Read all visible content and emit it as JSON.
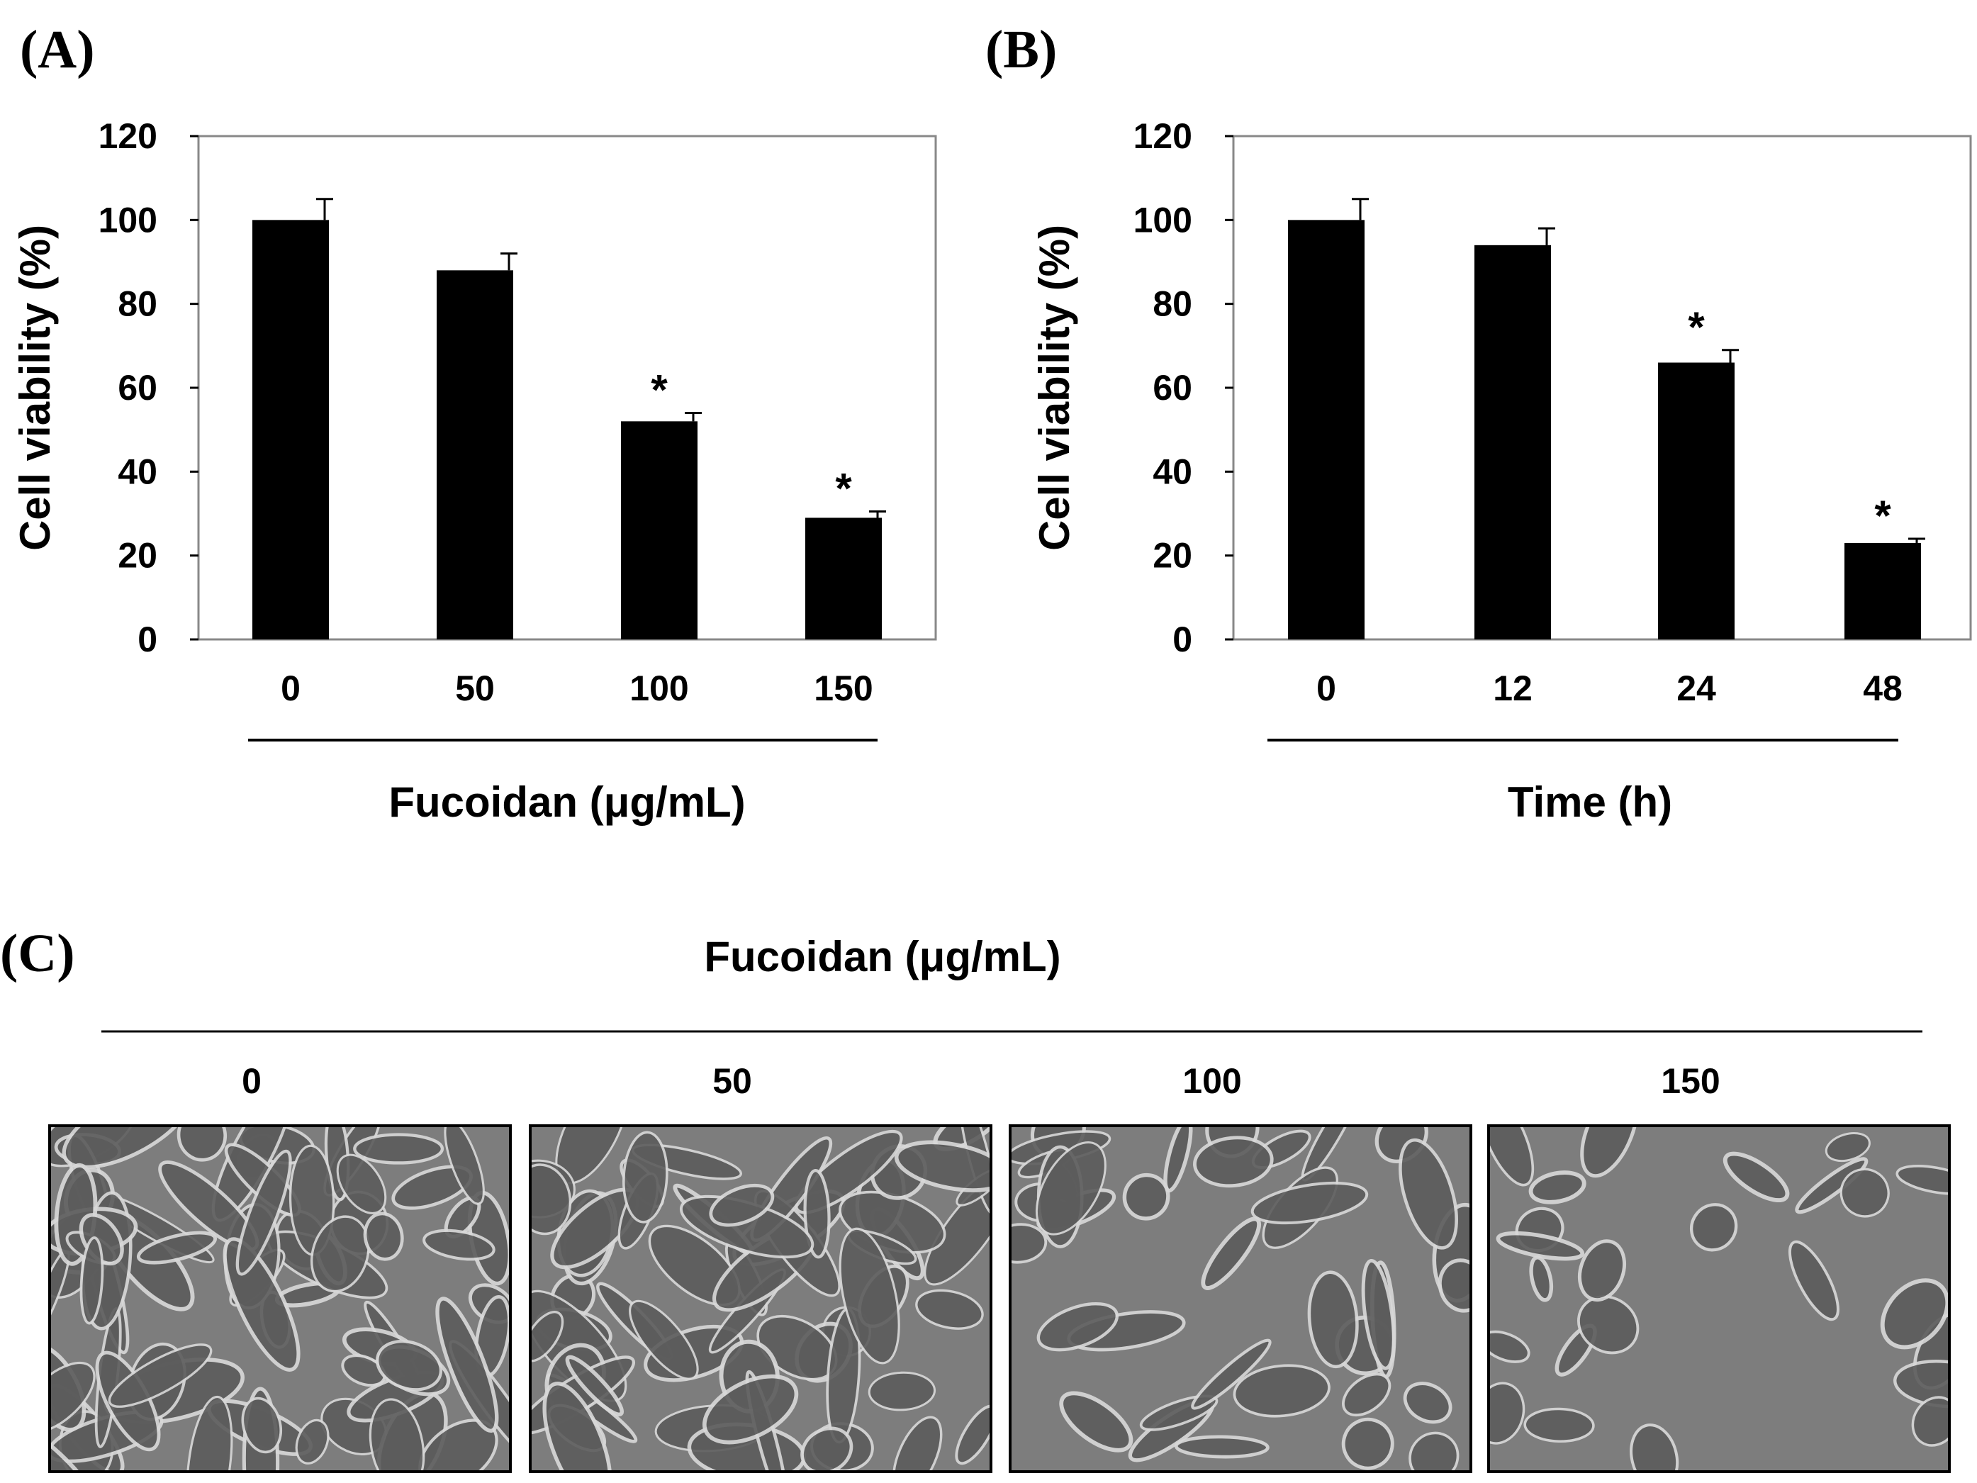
{
  "panels": [
    {
      "letter": "(A)"
    },
    {
      "letter": "(B)"
    },
    {
      "letter": "(C)"
    }
  ],
  "chart_data": [
    {
      "type": "bar",
      "panel": "(A)",
      "categories": [
        "0",
        "50",
        "100",
        "150"
      ],
      "values": [
        100,
        88,
        52,
        29
      ],
      "errors": [
        5,
        4,
        2,
        1.5
      ],
      "significant": [
        false,
        false,
        true,
        true
      ],
      "significance_marker": "*",
      "xlabel": "Fucoidan (μg/mL)",
      "ylabel": "Cell viability (%)",
      "ylim": [
        0,
        120
      ],
      "yticks": [
        0,
        20,
        40,
        60,
        80,
        100,
        120
      ],
      "bar_color": "#000000",
      "grid": false,
      "legend": "none"
    },
    {
      "type": "bar",
      "panel": "(B)",
      "categories": [
        "0",
        "12",
        "24",
        "48"
      ],
      "values": [
        100,
        94,
        66,
        23
      ],
      "errors": [
        5,
        4,
        3,
        1
      ],
      "significant": [
        false,
        false,
        true,
        true
      ],
      "significance_marker": "*",
      "xlabel": "Time (h)",
      "ylabel": "Cell viability (%)",
      "ylim": [
        0,
        120
      ],
      "yticks": [
        0,
        20,
        40,
        60,
        80,
        100,
        120
      ],
      "bar_color": "#000000",
      "grid": false,
      "legend": "none"
    }
  ],
  "micrographs": {
    "title": "Fucoidan (μg/mL)",
    "labels": [
      "0",
      "50",
      "100",
      "150"
    ],
    "cell_density": [
      1.0,
      0.8,
      0.45,
      0.25
    ]
  }
}
